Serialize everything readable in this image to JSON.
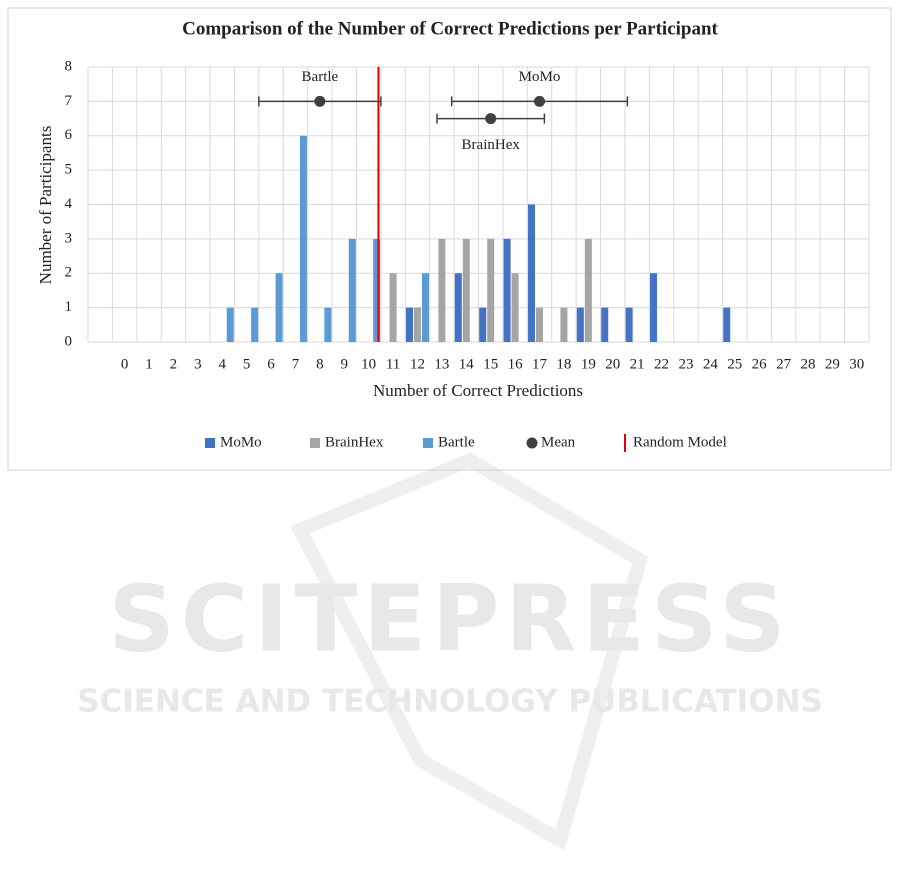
{
  "chart_data": {
    "type": "bar",
    "title": "Comparison of the Number of Correct Predictions per Participant",
    "xlabel": "Number of Correct Predictions",
    "ylabel": "Number of Participants",
    "categories": [
      0,
      1,
      2,
      3,
      4,
      5,
      6,
      7,
      8,
      9,
      10,
      11,
      12,
      13,
      14,
      15,
      16,
      17,
      18,
      19,
      20,
      21,
      22,
      23,
      24,
      25,
      26,
      27,
      28,
      29,
      30
    ],
    "series": [
      {
        "name": "MoMo",
        "color": "#4472c4",
        "values": [
          0,
          0,
          0,
          0,
          0,
          0,
          0,
          0,
          0,
          0,
          0,
          0,
          1,
          0,
          2,
          1,
          3,
          4,
          0,
          1,
          1,
          1,
          2,
          0,
          0,
          1,
          0,
          0,
          0,
          0,
          0
        ]
      },
      {
        "name": "BrainHex",
        "color": "#a5a5a5",
        "values": [
          0,
          0,
          0,
          0,
          0,
          0,
          0,
          0,
          0,
          0,
          0,
          2,
          1,
          3,
          3,
          3,
          2,
          1,
          1,
          3,
          0,
          0,
          0,
          0,
          0,
          0,
          0,
          0,
          0,
          0,
          0
        ]
      },
      {
        "name": "Bartle",
        "color": "#5b9bd5",
        "values": [
          0,
          0,
          0,
          0,
          1,
          1,
          2,
          6,
          1,
          3,
          3,
          0,
          2,
          0,
          0,
          0,
          0,
          0,
          0,
          0,
          0,
          0,
          0,
          0,
          0,
          0,
          0,
          0,
          0,
          0,
          0
        ]
      }
    ],
    "means": {
      "name": "Mean",
      "color": "#404040",
      "points": [
        {
          "name": "Bartle",
          "x": 8,
          "y": 7,
          "xerr": 2.5
        },
        {
          "name": "MoMo",
          "x": 17,
          "y": 7,
          "xerr": 3.6
        },
        {
          "name": "BrainHex",
          "x": 15,
          "y": 6.5,
          "xerr": 2.2
        }
      ]
    },
    "reference_line": {
      "name": "Random Model",
      "x": 10.4,
      "color": "#e00000"
    },
    "ylim": [
      0,
      8
    ],
    "yticks": [
      0,
      1,
      2,
      3,
      4,
      5,
      6,
      7,
      8
    ],
    "grid": true,
    "legend": "bottom"
  },
  "watermark": {
    "title": "SCITEPRESS",
    "subtitle": "SCIENCE AND TECHNOLOGY PUBLICATIONS"
  }
}
